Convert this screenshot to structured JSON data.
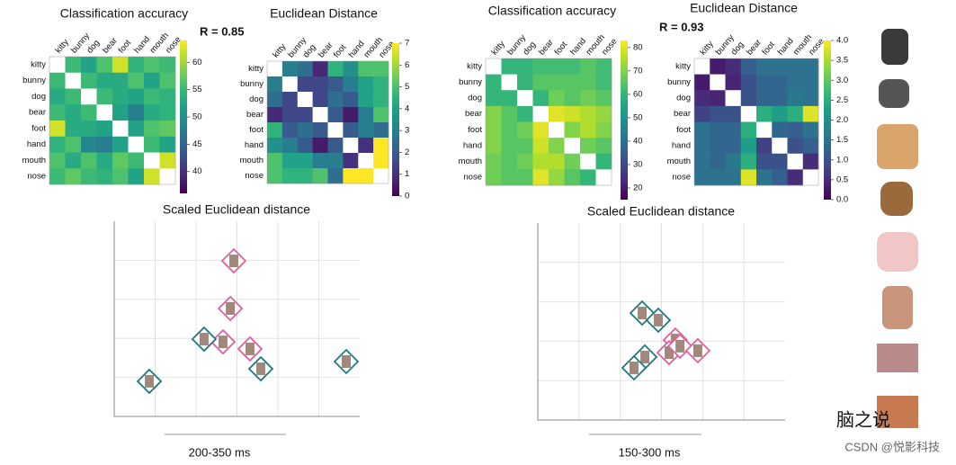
{
  "chart_data": [
    {
      "type": "heatmap",
      "title": "Classification accuracy",
      "annotation": "R = 0.85",
      "colormap": "viridis",
      "categories": [
        "kitty",
        "bunny",
        "dog",
        "bear",
        "foot",
        "hand",
        "mouth",
        "nose"
      ],
      "values": [
        [
          null,
          55,
          52,
          56,
          62,
          54,
          56,
          55
        ],
        [
          55,
          null,
          55,
          53,
          53,
          56,
          52,
          56
        ],
        [
          53,
          55,
          null,
          55,
          53,
          52,
          55,
          54
        ],
        [
          55,
          53,
          55,
          null,
          52,
          48,
          53,
          54
        ],
        [
          62,
          53,
          53,
          52,
          null,
          52,
          56,
          57
        ],
        [
          54,
          56,
          49,
          48,
          52,
          null,
          55,
          52
        ],
        [
          56,
          53,
          56,
          53,
          57,
          55,
          null,
          62
        ],
        [
          55,
          57,
          55,
          54,
          56,
          52,
          62,
          null
        ]
      ],
      "zlim": [
        36,
        64
      ],
      "zticks": [
        40,
        45,
        50,
        55,
        60
      ]
    },
    {
      "type": "heatmap",
      "title": "Euclidean Distance",
      "colormap": "viridis",
      "categories": [
        "kitty",
        "bunny",
        "dog",
        "bear",
        "foot",
        "hand",
        "mouth",
        "nose"
      ],
      "values": [
        [
          null,
          3,
          2.5,
          0.8,
          4.5,
          3.5,
          5,
          5
        ],
        [
          3,
          null,
          1.5,
          1.5,
          2,
          3,
          4,
          4.5
        ],
        [
          2.5,
          1.5,
          null,
          1.5,
          2.5,
          2,
          4,
          4.5
        ],
        [
          0.8,
          1.5,
          1.5,
          null,
          2,
          0.5,
          3,
          5
        ],
        [
          4.5,
          2,
          2.5,
          2,
          null,
          2,
          3,
          2.5
        ],
        [
          3.5,
          3,
          2,
          0.5,
          2,
          null,
          1,
          7
        ],
        [
          5,
          4,
          4,
          3,
          3,
          1,
          null,
          7
        ],
        [
          5,
          4.5,
          4.5,
          5,
          2.5,
          7,
          7,
          null
        ]
      ],
      "zlim": [
        0,
        7
      ],
      "zticks": [
        0,
        1,
        2,
        3,
        4,
        5,
        6,
        7
      ]
    },
    {
      "type": "heatmap",
      "title": "Classification accuracy",
      "annotation": "R = 0.93",
      "colormap": "viridis",
      "categories": [
        "kitty",
        "bunny",
        "dog",
        "bear",
        "foot",
        "hand",
        "mouth",
        "nose"
      ],
      "values": [
        [
          null,
          60,
          60,
          62,
          62,
          62,
          65,
          62
        ],
        [
          60,
          null,
          60,
          65,
          65,
          65,
          65,
          62
        ],
        [
          60,
          60,
          null,
          60,
          68,
          65,
          68,
          65
        ],
        [
          70,
          65,
          60,
          null,
          80,
          78,
          75,
          72
        ],
        [
          70,
          65,
          68,
          80,
          null,
          70,
          75,
          70
        ],
        [
          70,
          65,
          65,
          78,
          70,
          null,
          68,
          65
        ],
        [
          68,
          65,
          68,
          75,
          75,
          68,
          null,
          60
        ],
        [
          68,
          65,
          65,
          80,
          72,
          65,
          60,
          null
        ]
      ],
      "zlim": [
        15,
        83
      ],
      "zticks": [
        20,
        30,
        40,
        50,
        60,
        70,
        80
      ]
    },
    {
      "type": "heatmap",
      "title": "Euclidean Distance",
      "colormap": "viridis",
      "categories": [
        "kitty",
        "bunny",
        "dog",
        "bear",
        "foot",
        "hand",
        "mouth",
        "nose"
      ],
      "values": [
        [
          null,
          0.3,
          0.5,
          1.2,
          1.5,
          1.5,
          1.5,
          1.5
        ],
        [
          0.3,
          null,
          0.4,
          1,
          1.3,
          1.3,
          1.5,
          1.5
        ],
        [
          0.5,
          0.4,
          null,
          1,
          1.3,
          1.3,
          1.6,
          1.5
        ],
        [
          0.8,
          1,
          1,
          null,
          2.5,
          2.2,
          2.5,
          3.8
        ],
        [
          1.5,
          1.3,
          1.3,
          2.5,
          null,
          1.3,
          1.2,
          1.5
        ],
        [
          1.5,
          1.3,
          1.3,
          2.2,
          0.8,
          null,
          1,
          1.2
        ],
        [
          1.5,
          1.3,
          1.6,
          2.5,
          1,
          1,
          null,
          0.5
        ],
        [
          1.5,
          1.5,
          1.5,
          3.8,
          1.5,
          1.2,
          0.5,
          null
        ]
      ],
      "zlim": [
        0,
        4
      ],
      "zticks": [
        {
          "value": 0,
          "label": "0.0"
        },
        {
          "value": 0.5,
          "label": "0.5"
        },
        {
          "value": 1,
          "label": "1.0"
        },
        {
          "value": 1.5,
          "label": "1.5"
        },
        {
          "value": 2,
          "label": "2.0"
        },
        {
          "value": 2.5,
          "label": "2.5"
        },
        {
          "value": 3,
          "label": "3.0"
        },
        {
          "value": 3.5,
          "label": "3.5"
        },
        {
          "value": 4,
          "label": "4.0"
        }
      ]
    },
    {
      "type": "scatter",
      "title": "Scaled Euclidean distance",
      "xlabel": "200-350 ms",
      "xlim": [
        0,
        100
      ],
      "ylim": [
        0,
        100
      ],
      "grid": true,
      "series": [
        {
          "color": "#e0609a",
          "x": [
            48.7,
            47.3,
            44.3,
            55.3
          ],
          "values": [
            79.7,
            55.3,
            38.2,
            34.6
          ]
        },
        {
          "color": "#1f7a80",
          "x": [
            36.6,
            59.7,
            94.5,
            14.3
          ],
          "values": [
            39.6,
            24.4,
            28.1,
            18.0
          ]
        }
      ]
    },
    {
      "type": "scatter",
      "title": "Scaled Euclidean distance",
      "xlabel": "150-300 ms",
      "xlim": [
        0,
        100
      ],
      "ylim": [
        0,
        100
      ],
      "grid": true,
      "series": [
        {
          "color": "#e0609a",
          "x": [
            55.6,
            53.1,
            57.5,
            64.7
          ],
          "values": [
            40.6,
            34.2,
            37.5,
            35.2
          ]
        },
        {
          "color": "#1f7a80",
          "x": [
            42.2,
            48.7,
            43.3,
            38.9
          ],
          "values": [
            54.3,
            50.7,
            32.0,
            26.5
          ]
        }
      ]
    }
  ],
  "watermark": [
    "脑之说",
    "CSDN @悦影科技"
  ]
}
